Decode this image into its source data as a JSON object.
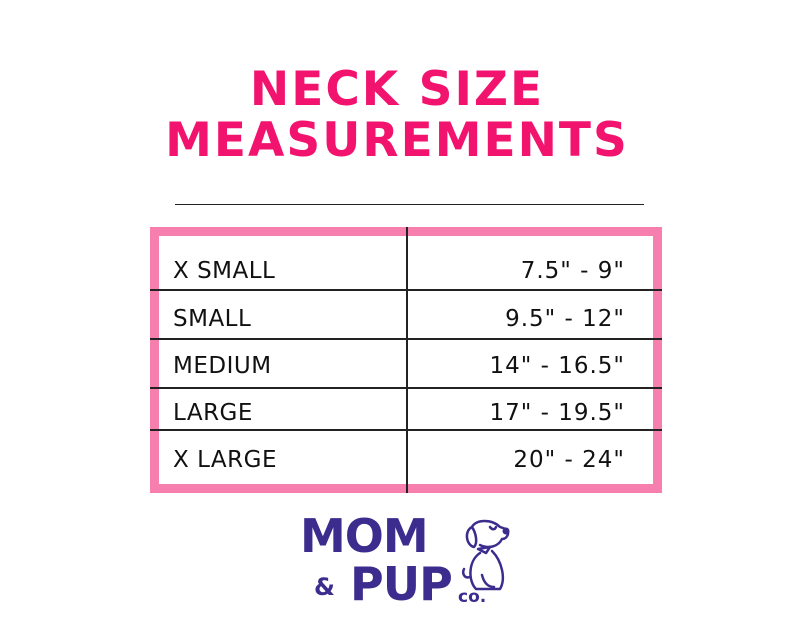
{
  "title": {
    "line1": "NECK SIZE",
    "line2": "MEASUREMENTS"
  },
  "table": {
    "rows": [
      {
        "size": "X SMALL",
        "range": "7.5\" - 9\""
      },
      {
        "size": "SMALL",
        "range": "9.5\" - 12\""
      },
      {
        "size": "MEDIUM",
        "range": "14\" - 16.5\""
      },
      {
        "size": "LARGE",
        "range": "17\" - 19.5\""
      },
      {
        "size": "X LARGE",
        "range": "20\" - 24\""
      }
    ]
  },
  "logo": {
    "line1": "MOM",
    "amp": "&",
    "line2": "PUP",
    "suffix": "co."
  },
  "colors": {
    "title": "#f2136f",
    "table_border": "#f77fae",
    "logo": "#3b2c8e"
  }
}
